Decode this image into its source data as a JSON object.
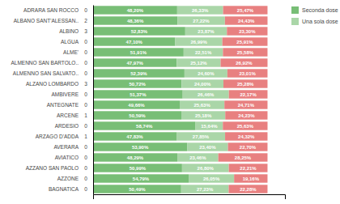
{
  "chart_data": {
    "type": "bar",
    "orientation": "horizontal",
    "stacked": true,
    "data_labels": true,
    "tick_labels": false,
    "grid": false,
    "legend": "top-right",
    "categories": [
      "ADRARA SAN ROCCO",
      "ALBANO SANT'ALESSAN..",
      "ALBINO",
      "ALGUA",
      "ALME'",
      "ALMENNO SAN BARTOLO..",
      "ALMENNO SAN SALVATO..",
      "ALZANO LOMBARDO",
      "AMBIVERE",
      "ANTEGNATE",
      "ARCENE",
      "ARDESIO",
      "ARZAGO D'ADDA",
      "AVERARA",
      "AVIATICO",
      "AZZANO SAN PAOLO",
      "AZZONE",
      "BAGNATICA"
    ],
    "counts": [
      0,
      2,
      3,
      0,
      0,
      0,
      0,
      3,
      0,
      0,
      1,
      0,
      1,
      0,
      0,
      0,
      0,
      0
    ],
    "xlim": [
      0,
      110
    ],
    "series": [
      {
        "name": "Seconda dose",
        "color": "#78be76",
        "values": [
          48.2,
          48.36,
          52.83,
          47.1,
          51.91,
          47.97,
          52.39,
          50.72,
          51.37,
          49.66,
          50.59,
          58.74,
          47.83,
          53.9,
          48.29,
          50.99,
          54.79,
          50.49
        ],
        "value_labels": [
          "48,20%",
          "48,36%",
          "52,83%",
          "47,10%",
          "51,91%",
          "47,97%",
          "52,39%",
          "50,72%",
          "51,37%",
          "49,66%",
          "50,59%",
          "58,74%",
          "47,83%",
          "53,90%",
          "48,29%",
          "50,99%",
          "54,79%",
          "50,49%"
        ]
      },
      {
        "name": "Una sola dose",
        "color": "#aad6a8",
        "values": [
          26.33,
          27.22,
          23.87,
          26.99,
          22.51,
          25.12,
          24.6,
          24.0,
          26.46,
          25.63,
          25.18,
          15.64,
          27.85,
          23.4,
          23.46,
          26.8,
          26.05,
          27.23
        ],
        "value_labels": [
          "26,33%",
          "27,22%",
          "23,87%",
          "26,99%",
          "22,51%",
          "25,12%",
          "24,60%",
          "24,00%",
          "26,46%",
          "25,63%",
          "25,18%",
          "15,64%",
          "27,85%",
          "23,40%",
          "23,46%",
          "26,80%",
          "26,05%",
          "27,23%"
        ]
      },
      {
        "color": "#e88080",
        "values": [
          25.47,
          24.43,
          23.3,
          25.91,
          25.58,
          26.92,
          23.01,
          25.28,
          22.17,
          24.71,
          24.23,
          25.63,
          24.32,
          22.7,
          28.25,
          22.21,
          19.16,
          22.28
        ],
        "value_labels": [
          "25,47%",
          "24,43%",
          "23,30%",
          "25,91%",
          "25,58%",
          "26,92%",
          "23,01%",
          "25,28%",
          "22,17%",
          "24,71%",
          "24,23%",
          "25,63%",
          "24,32%",
          "22,70%",
          "28,25%",
          "22,21%",
          "19,16%",
          "22,28%"
        ]
      }
    ]
  }
}
